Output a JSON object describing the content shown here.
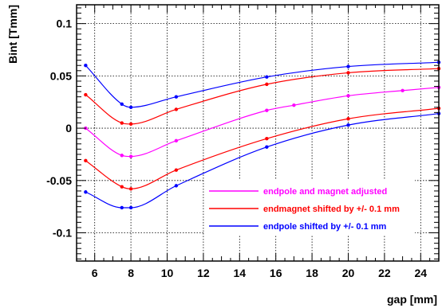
{
  "chart_data": {
    "type": "line",
    "title": "",
    "xlabel": "gap [mm]",
    "ylabel": "Bint [Tmm]",
    "xlim": [
      5,
      25
    ],
    "ylim": [
      -0.127,
      0.118
    ],
    "xticks": [
      6,
      8,
      10,
      12,
      14,
      16,
      18,
      20,
      22,
      24
    ],
    "xtick_labels": [
      "6",
      "8",
      "10",
      "12",
      "14",
      "16",
      "18",
      "20",
      "22",
      "24"
    ],
    "yticks": [
      -0.1,
      -0.05,
      0,
      0.05,
      0.1
    ],
    "ytick_labels": [
      "-0.1",
      "-0.05",
      "0",
      "0.05",
      "0.1"
    ],
    "grid": true,
    "legend_position": "bottom-right",
    "series": [
      {
        "name": "endpole shifted by +/- 0.1 mm",
        "color": "#0000ff",
        "x": [
          5.5,
          7.5,
          8,
          10.5,
          15.5,
          20,
          25
        ],
        "y": [
          0.06,
          0.023,
          0.02,
          0.03,
          0.049,
          0.059,
          0.063
        ]
      },
      {
        "name": "endmagnet shifted by +/- 0.1 mm",
        "color": "#ff0000",
        "x": [
          5.5,
          7.5,
          8,
          10.5,
          15.5,
          20,
          25
        ],
        "y": [
          0.032,
          0.005,
          0.004,
          0.018,
          0.042,
          0.053,
          0.057
        ]
      },
      {
        "name": "endpole and magnet adjusted",
        "color": "#ff00ff",
        "x": [
          5.5,
          7.5,
          8,
          10.5,
          15.5,
          17,
          20,
          23,
          25
        ],
        "y": [
          0.0,
          -0.026,
          -0.027,
          -0.012,
          0.017,
          0.022,
          0.031,
          0.036,
          0.039
        ]
      },
      {
        "name": "endmagnet shifted by +/- 0.1 mm",
        "color": "#ff0000",
        "x": [
          5.5,
          7.5,
          8,
          10.5,
          15.5,
          20,
          25
        ],
        "y": [
          -0.031,
          -0.056,
          -0.058,
          -0.04,
          -0.01,
          0.009,
          0.019
        ]
      },
      {
        "name": "endpole shifted by +/- 0.1 mm",
        "color": "#0000ff",
        "x": [
          5.5,
          7.5,
          8,
          10.5,
          15.5,
          20,
          25
        ],
        "y": [
          -0.061,
          -0.076,
          -0.076,
          -0.055,
          -0.018,
          0.003,
          0.014
        ]
      }
    ],
    "legend": [
      {
        "label": "endpole and magnet adjusted",
        "color": "#ff00ff"
      },
      {
        "label": "endmagnet shifted by +/- 0.1 mm",
        "color": "#ff0000"
      },
      {
        "label": "endpole shifted by +/- 0.1 mm",
        "color": "#0000ff"
      }
    ]
  }
}
